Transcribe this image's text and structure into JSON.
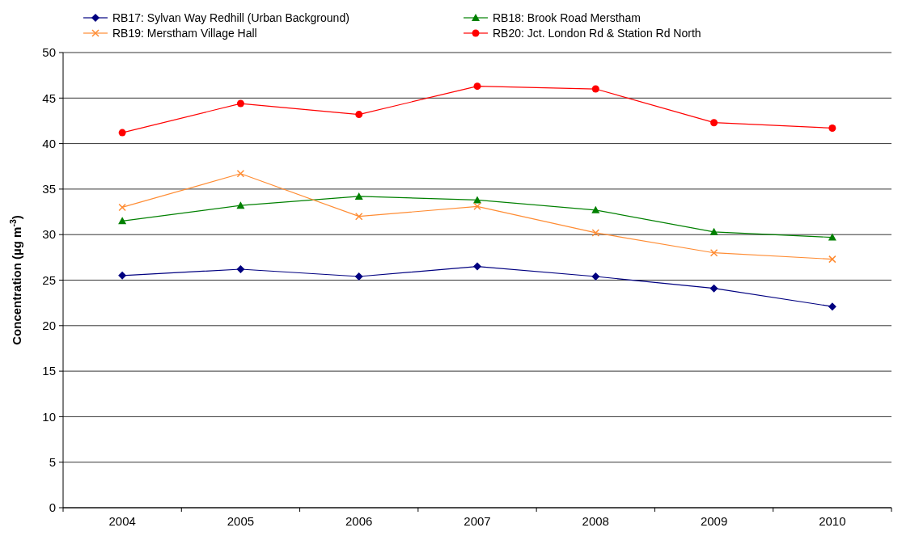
{
  "chart_data": {
    "type": "line",
    "categories": [
      "2004",
      "2005",
      "2006",
      "2007",
      "2008",
      "2009",
      "2010"
    ],
    "ylabel": "Concentration (µg m$^{-3}$)",
    "ylim": [
      0,
      50
    ],
    "yticks": [
      0,
      5,
      10,
      15,
      20,
      25,
      30,
      35,
      40,
      45,
      50
    ],
    "grid": "y",
    "legend": "top",
    "series": [
      {
        "name": "RB17: Sylvan Way Redhill (Urban Background)",
        "color": "#000080",
        "marker": "diamond",
        "values": [
          25.5,
          26.2,
          25.4,
          26.5,
          25.4,
          24.1,
          22.1
        ]
      },
      {
        "name": "RB18: Brook Road Merstham",
        "color": "#008000",
        "marker": "triangle",
        "values": [
          31.5,
          33.2,
          34.2,
          33.8,
          32.7,
          30.3,
          29.7
        ]
      },
      {
        "name": "RB19: Merstham Village Hall",
        "color": "#ff8c33",
        "marker": "cross",
        "values": [
          33.0,
          36.7,
          32.0,
          33.1,
          30.2,
          28.0,
          27.3
        ]
      },
      {
        "name": "RB20: Jct. London Rd & Station Rd North",
        "color": "#ff0000",
        "marker": "circle",
        "values": [
          41.2,
          44.4,
          43.2,
          46.3,
          46.0,
          42.3,
          41.7
        ]
      }
    ]
  }
}
